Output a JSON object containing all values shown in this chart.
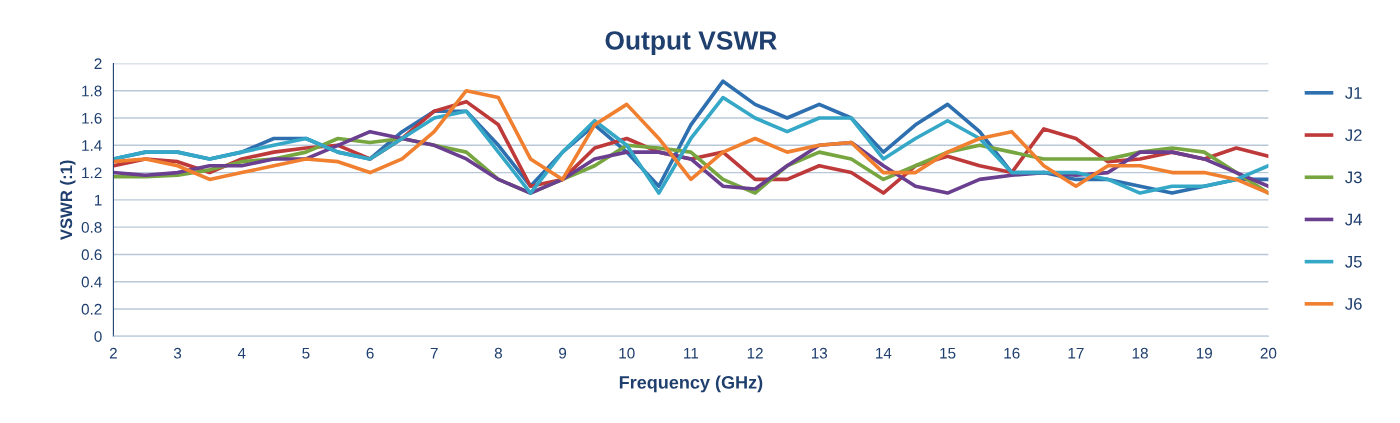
{
  "chart_data": {
    "type": "line",
    "title": "Output VSWR",
    "xlabel": "Frequency (GHz)",
    "ylabel": "VSWR (:1)",
    "x": [
      2,
      2.5,
      3,
      3.5,
      4,
      4.5,
      5,
      5.5,
      6,
      6.5,
      7,
      7.5,
      8,
      8.5,
      9,
      9.5,
      10,
      10.5,
      11,
      11.5,
      12,
      12.5,
      13,
      13.5,
      14,
      14.5,
      15,
      15.5,
      16,
      16.5,
      17,
      17.5,
      18,
      18.5,
      19,
      19.5,
      20
    ],
    "xlim": [
      2,
      20
    ],
    "xticks": [
      2,
      3,
      4,
      5,
      6,
      7,
      8,
      9,
      10,
      11,
      12,
      13,
      14,
      15,
      16,
      17,
      18,
      19,
      20
    ],
    "ylim": [
      0,
      2
    ],
    "yticks": [
      0,
      {
        "value": 0.2,
        "label": "0.2"
      },
      {
        "value": 0.4,
        "label": "0.4"
      },
      {
        "value": 0.6,
        "label": "0.6"
      },
      {
        "value": 0.8,
        "label": "0.8"
      },
      1,
      {
        "value": 1.2,
        "label": "1.2"
      },
      {
        "value": 1.4,
        "label": "1.4"
      },
      {
        "value": 1.6,
        "label": "1.6"
      },
      {
        "value": 1.8,
        "label": "1.8"
      },
      2
    ],
    "grid": "y",
    "legend": "right",
    "marker": "none",
    "line_style": "solid",
    "series": [
      {
        "name": "J1",
        "color": "#2e6fb0",
        "values": [
          1.3,
          1.35,
          1.35,
          1.3,
          1.35,
          1.45,
          1.45,
          1.35,
          1.3,
          1.5,
          1.65,
          1.65,
          1.4,
          1.1,
          1.35,
          1.55,
          1.35,
          1.1,
          1.55,
          1.87,
          1.7,
          1.6,
          1.7,
          1.6,
          1.35,
          1.55,
          1.7,
          1.5,
          1.2,
          1.2,
          1.15,
          1.15,
          1.1,
          1.05,
          1.1,
          1.15,
          1.15
        ]
      },
      {
        "name": "J2",
        "color": "#be3a3a",
        "values": [
          1.25,
          1.3,
          1.28,
          1.2,
          1.3,
          1.35,
          1.38,
          1.4,
          1.3,
          1.45,
          1.65,
          1.72,
          1.55,
          1.1,
          1.15,
          1.38,
          1.45,
          1.35,
          1.3,
          1.35,
          1.15,
          1.15,
          1.25,
          1.2,
          1.05,
          1.25,
          1.32,
          1.25,
          1.2,
          1.52,
          1.45,
          1.28,
          1.3,
          1.35,
          1.3,
          1.38,
          1.32
        ]
      },
      {
        "name": "J3",
        "color": "#77a640",
        "values": [
          1.17,
          1.17,
          1.18,
          1.22,
          1.28,
          1.3,
          1.35,
          1.45,
          1.42,
          1.45,
          1.4,
          1.35,
          1.15,
          1.05,
          1.15,
          1.25,
          1.4,
          1.38,
          1.35,
          1.15,
          1.05,
          1.25,
          1.35,
          1.3,
          1.15,
          1.25,
          1.35,
          1.4,
          1.35,
          1.3,
          1.3,
          1.3,
          1.35,
          1.38,
          1.35,
          1.2,
          1.05
        ]
      },
      {
        "name": "J4",
        "color": "#6a3f8f",
        "values": [
          1.2,
          1.18,
          1.2,
          1.25,
          1.25,
          1.3,
          1.3,
          1.4,
          1.5,
          1.45,
          1.4,
          1.3,
          1.15,
          1.05,
          1.15,
          1.3,
          1.35,
          1.35,
          1.3,
          1.1,
          1.08,
          1.25,
          1.4,
          1.42,
          1.25,
          1.1,
          1.05,
          1.15,
          1.18,
          1.2,
          1.18,
          1.2,
          1.35,
          1.35,
          1.3,
          1.2,
          1.1
        ]
      },
      {
        "name": "J5",
        "color": "#35a8c8",
        "values": [
          1.3,
          1.35,
          1.35,
          1.3,
          1.35,
          1.4,
          1.45,
          1.35,
          1.3,
          1.45,
          1.6,
          1.65,
          1.35,
          1.05,
          1.35,
          1.58,
          1.4,
          1.05,
          1.45,
          1.75,
          1.6,
          1.5,
          1.6,
          1.6,
          1.3,
          1.45,
          1.58,
          1.45,
          1.2,
          1.2,
          1.2,
          1.15,
          1.05,
          1.1,
          1.1,
          1.15,
          1.25
        ]
      },
      {
        "name": "J6",
        "color": "#f08030",
        "values": [
          1.28,
          1.3,
          1.25,
          1.15,
          1.2,
          1.25,
          1.3,
          1.28,
          1.2,
          1.3,
          1.5,
          1.8,
          1.75,
          1.3,
          1.15,
          1.55,
          1.7,
          1.45,
          1.15,
          1.35,
          1.45,
          1.35,
          1.4,
          1.42,
          1.2,
          1.2,
          1.35,
          1.45,
          1.5,
          1.25,
          1.1,
          1.25,
          1.25,
          1.2,
          1.2,
          1.15,
          1.05
        ]
      }
    ]
  }
}
